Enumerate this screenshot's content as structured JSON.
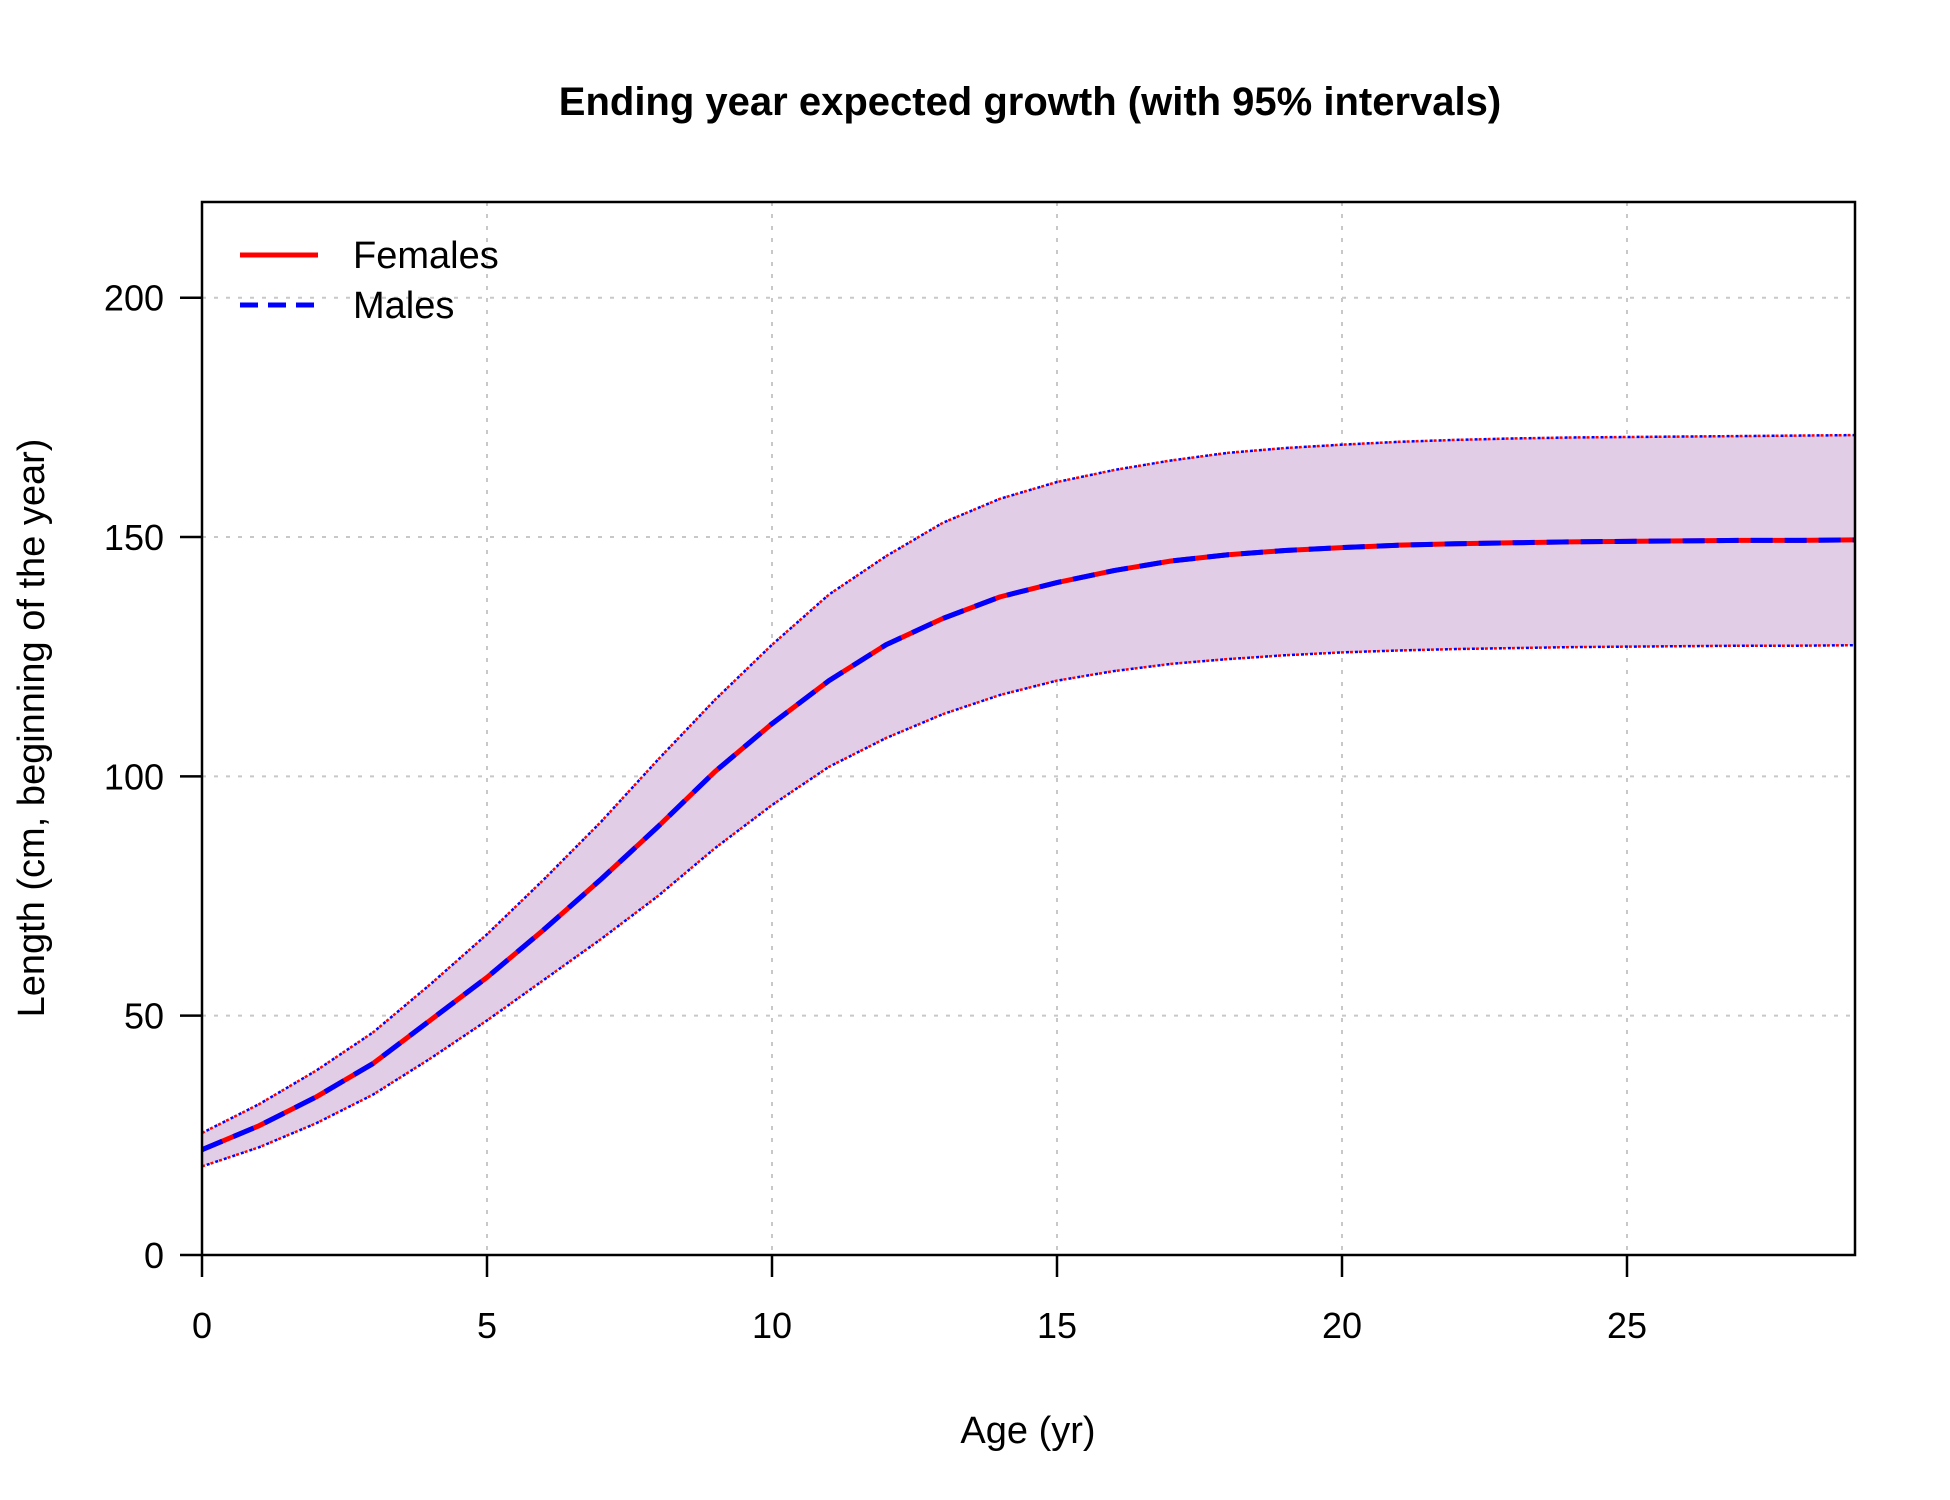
{
  "chart_data": {
    "type": "line",
    "title": "Ending year expected growth (with 95% intervals)",
    "xlabel": "Age (yr)",
    "ylabel": "Length (cm, beginning of the year)",
    "xlim": [
      0,
      29
    ],
    "ylim": [
      0,
      220
    ],
    "xticks": [
      0,
      5,
      10,
      15,
      20,
      25
    ],
    "yticks": [
      0,
      50,
      100,
      150,
      200
    ],
    "grid": true,
    "legend_position": "top-left",
    "band_color": "#e2cde6",
    "x": [
      0,
      1,
      2,
      3,
      4,
      5,
      6,
      7,
      8,
      9,
      10,
      11,
      12,
      13,
      14,
      15,
      16,
      17,
      18,
      19,
      20,
      21,
      22,
      23,
      24,
      25,
      26,
      27,
      28,
      29
    ],
    "series": [
      {
        "name": "Females",
        "color": "#ff0000",
        "line_style": "solid",
        "values": [
          22,
          27,
          33,
          40,
          49,
          58,
          68,
          78.5,
          89.5,
          101,
          111,
          120,
          127.5,
          133,
          137.5,
          140.5,
          143,
          145,
          146.3,
          147.2,
          147.8,
          148.3,
          148.6,
          148.8,
          149,
          149.1,
          149.2,
          149.3,
          149.3,
          149.4
        ],
        "lower": [
          18.5,
          22.5,
          27.5,
          33.5,
          41,
          49,
          57.5,
          66,
          75,
          85,
          94,
          102,
          108,
          113,
          117,
          120,
          122,
          123.5,
          124.5,
          125.3,
          125.9,
          126.3,
          126.6,
          126.8,
          127,
          127.1,
          127.2,
          127.3,
          127.3,
          127.4
        ],
        "upper": [
          25.5,
          31.5,
          38.5,
          46.5,
          56.5,
          67,
          78.5,
          90.5,
          103.5,
          116,
          127.5,
          138,
          146,
          153,
          158,
          161.5,
          164,
          166,
          167.6,
          168.6,
          169.3,
          169.9,
          170.3,
          170.6,
          170.8,
          170.9,
          171,
          171.1,
          171.2,
          171.3
        ]
      },
      {
        "name": "Males",
        "color": "#0000ff",
        "line_style": "dashed",
        "values": [
          22,
          27,
          33,
          40,
          49,
          58,
          68,
          78.5,
          89.5,
          101,
          111,
          120,
          127.5,
          133,
          137.5,
          140.5,
          143,
          145,
          146.3,
          147.2,
          147.8,
          148.3,
          148.6,
          148.8,
          149,
          149.1,
          149.2,
          149.3,
          149.3,
          149.4
        ],
        "lower": [
          18.5,
          22.5,
          27.5,
          33.5,
          41,
          49,
          57.5,
          66,
          75,
          85,
          94,
          102,
          108,
          113,
          117,
          120,
          122,
          123.5,
          124.5,
          125.3,
          125.9,
          126.3,
          126.6,
          126.8,
          127,
          127.1,
          127.2,
          127.3,
          127.3,
          127.4
        ],
        "upper": [
          25.5,
          31.5,
          38.5,
          46.5,
          56.5,
          67,
          78.5,
          90.5,
          103.5,
          116,
          127.5,
          138,
          146,
          153,
          158,
          161.5,
          164,
          166,
          167.6,
          168.6,
          169.3,
          169.9,
          170.3,
          170.6,
          170.8,
          170.9,
          171,
          171.1,
          171.2,
          171.3
        ]
      }
    ]
  }
}
